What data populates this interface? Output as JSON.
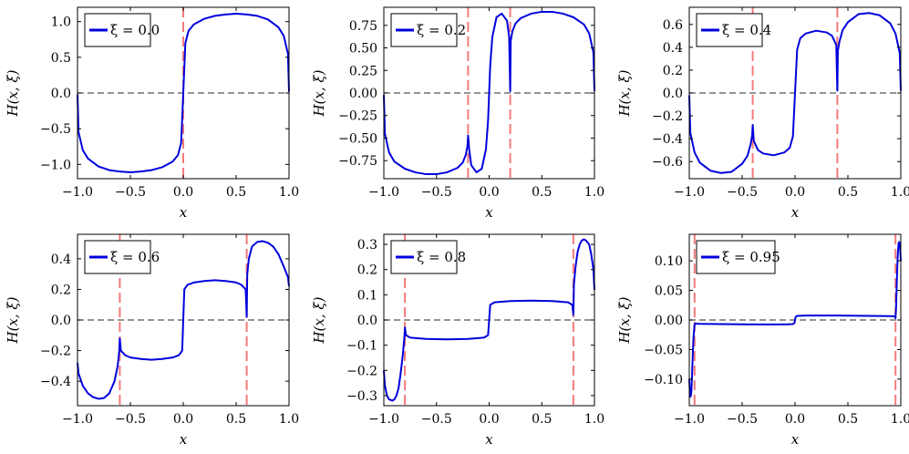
{
  "colors": {
    "curve": "#0000dd",
    "marker": "#f47a7a",
    "zero": "#555555"
  },
  "chart_data": [
    {
      "type": "line",
      "panel": "top-left",
      "legend": "ξ = 0.0",
      "xi": 0.0,
      "xlim": [
        -1,
        1
      ],
      "ylim": [
        -1.2,
        1.2
      ],
      "xticks": [
        -1,
        -0.5,
        0,
        0.5,
        1
      ],
      "xtick_labels": [
        "−1.0",
        "−0.5",
        "0.0",
        "0.5",
        "1.0"
      ],
      "yticks": [
        -1,
        -0.5,
        0,
        0.5,
        1
      ],
      "ytick_labels": [
        "−1.0",
        "−0.5",
        "0.0",
        "0.5",
        "1.0"
      ],
      "xlabel": "x",
      "ylabel": "H(x, ξ)",
      "vlines": [
        0
      ],
      "x": [
        -1.0,
        -0.99,
        -0.95,
        -0.9,
        -0.8,
        -0.7,
        -0.6,
        -0.5,
        -0.4,
        -0.3,
        -0.2,
        -0.1,
        -0.05,
        -0.02,
        0.0,
        0.02,
        0.05,
        0.1,
        0.2,
        0.3,
        0.4,
        0.5,
        0.6,
        0.7,
        0.8,
        0.9,
        0.95,
        0.99,
        1.0
      ],
      "y": [
        -0.02,
        -0.55,
        -0.8,
        -0.92,
        -1.03,
        -1.08,
        -1.1,
        -1.11,
        -1.1,
        -1.08,
        -1.04,
        -0.96,
        -0.87,
        -0.7,
        0.0,
        0.7,
        0.87,
        0.96,
        1.04,
        1.08,
        1.1,
        1.11,
        1.1,
        1.08,
        1.03,
        0.92,
        0.8,
        0.55,
        0.02
      ]
    },
    {
      "type": "line",
      "panel": "top-center",
      "legend": "ξ = 0.2",
      "xi": 0.2,
      "xlim": [
        -1,
        1
      ],
      "ylim": [
        -0.95,
        0.95
      ],
      "xticks": [
        -1,
        -0.5,
        0,
        0.5,
        1
      ],
      "xtick_labels": [
        "−1.0",
        "−0.5",
        "0.0",
        "0.5",
        "1.0"
      ],
      "yticks": [
        -0.75,
        -0.5,
        -0.25,
        0,
        0.25,
        0.5,
        0.75
      ],
      "ytick_labels": [
        "−0.75",
        "−0.50",
        "−0.25",
        "0.00",
        "0.25",
        "0.50",
        "0.75"
      ],
      "xlabel": "x",
      "ylabel": "H(x, ξ)",
      "vlines": [
        -0.2,
        0.2
      ],
      "x": [
        -1.0,
        -0.99,
        -0.95,
        -0.9,
        -0.8,
        -0.7,
        -0.6,
        -0.5,
        -0.4,
        -0.3,
        -0.25,
        -0.22,
        -0.205,
        -0.2,
        -0.19,
        -0.17,
        -0.12,
        -0.07,
        -0.03,
        -0.01,
        0.0,
        0.01,
        0.03,
        0.07,
        0.12,
        0.17,
        0.19,
        0.2,
        0.205,
        0.22,
        0.25,
        0.3,
        0.4,
        0.5,
        0.6,
        0.7,
        0.8,
        0.9,
        0.95,
        0.99,
        1.0
      ],
      "y": [
        -0.02,
        -0.45,
        -0.66,
        -0.76,
        -0.84,
        -0.88,
        -0.9,
        -0.9,
        -0.88,
        -0.83,
        -0.77,
        -0.68,
        -0.58,
        -0.47,
        -0.62,
        -0.8,
        -0.88,
        -0.84,
        -0.62,
        -0.3,
        0.0,
        0.3,
        0.62,
        0.84,
        0.88,
        0.8,
        0.62,
        0.02,
        0.58,
        0.68,
        0.77,
        0.83,
        0.88,
        0.9,
        0.9,
        0.88,
        0.84,
        0.76,
        0.66,
        0.45,
        0.02
      ]
    },
    {
      "type": "line",
      "panel": "top-right",
      "legend": "ξ = 0.4",
      "xi": 0.4,
      "xlim": [
        -1,
        1
      ],
      "ylim": [
        -0.75,
        0.75
      ],
      "xticks": [
        -1,
        -0.5,
        0,
        0.5,
        1
      ],
      "xtick_labels": [
        "−1.0",
        "−0.5",
        "0.0",
        "0.5",
        "1.0"
      ],
      "yticks": [
        -0.6,
        -0.4,
        -0.2,
        0,
        0.2,
        0.4,
        0.6
      ],
      "ytick_labels": [
        "−0.6",
        "−0.4",
        "−0.2",
        "0.0",
        "0.2",
        "0.4",
        "0.6"
      ],
      "xlabel": "x",
      "ylabel": "H(x, ξ)",
      "vlines": [
        -0.4,
        0.4
      ],
      "x": [
        -1.0,
        -0.99,
        -0.95,
        -0.9,
        -0.8,
        -0.7,
        -0.6,
        -0.5,
        -0.45,
        -0.42,
        -0.405,
        -0.4,
        -0.39,
        -0.35,
        -0.3,
        -0.2,
        -0.1,
        -0.05,
        -0.02,
        0.0,
        0.02,
        0.05,
        0.1,
        0.2,
        0.3,
        0.35,
        0.39,
        0.4,
        0.405,
        0.42,
        0.45,
        0.5,
        0.6,
        0.7,
        0.8,
        0.9,
        0.95,
        0.99,
        1.0
      ],
      "y": [
        -0.02,
        -0.35,
        -0.52,
        -0.61,
        -0.68,
        -0.7,
        -0.69,
        -0.62,
        -0.55,
        -0.45,
        -0.37,
        -0.28,
        -0.42,
        -0.5,
        -0.53,
        -0.545,
        -0.52,
        -0.48,
        -0.38,
        0.0,
        0.38,
        0.48,
        0.52,
        0.545,
        0.53,
        0.5,
        0.42,
        0.02,
        0.37,
        0.45,
        0.55,
        0.62,
        0.69,
        0.7,
        0.68,
        0.61,
        0.52,
        0.35,
        0.02
      ]
    },
    {
      "type": "line",
      "panel": "bottom-left",
      "legend": "ξ = 0.6",
      "xi": 0.6,
      "xlim": [
        -1,
        1
      ],
      "ylim": [
        -0.56,
        0.56
      ],
      "xticks": [
        -1,
        -0.5,
        0,
        0.5,
        1
      ],
      "xtick_labels": [
        "−1.0",
        "−0.5",
        "0.0",
        "0.5",
        "1.0"
      ],
      "yticks": [
        -0.4,
        -0.2,
        0,
        0.2,
        0.4
      ],
      "ytick_labels": [
        "−0.4",
        "−0.2",
        "0.0",
        "0.2",
        "0.4"
      ],
      "xlabel": "x",
      "ylabel": "H(x, ξ)",
      "vlines": [
        -0.6,
        0.6
      ],
      "x": [
        -1.0,
        -0.99,
        -0.95,
        -0.9,
        -0.85,
        -0.8,
        -0.75,
        -0.7,
        -0.65,
        -0.62,
        -0.605,
        -0.6,
        -0.59,
        -0.55,
        -0.5,
        -0.4,
        -0.3,
        -0.2,
        -0.1,
        -0.04,
        -0.01,
        0.0,
        0.01,
        0.04,
        0.1,
        0.2,
        0.3,
        0.4,
        0.5,
        0.55,
        0.59,
        0.6,
        0.605,
        0.62,
        0.65,
        0.7,
        0.75,
        0.8,
        0.85,
        0.9,
        0.95,
        0.99,
        1.0
      ],
      "y": [
        -0.28,
        -0.35,
        -0.43,
        -0.48,
        -0.505,
        -0.515,
        -0.51,
        -0.48,
        -0.4,
        -0.3,
        -0.2,
        -0.12,
        -0.2,
        -0.23,
        -0.245,
        -0.255,
        -0.26,
        -0.255,
        -0.245,
        -0.23,
        -0.2,
        0.0,
        0.2,
        0.23,
        0.245,
        0.255,
        0.26,
        0.255,
        0.245,
        0.23,
        0.2,
        0.02,
        0.3,
        0.4,
        0.48,
        0.51,
        0.515,
        0.505,
        0.48,
        0.43,
        0.35,
        0.28,
        0.22
      ]
    },
    {
      "type": "line",
      "panel": "bottom-center",
      "legend": "ξ = 0.8",
      "xi": 0.8,
      "xlim": [
        -1,
        1
      ],
      "ylim": [
        -0.34,
        0.34
      ],
      "xticks": [
        -1,
        -0.5,
        0,
        0.5,
        1
      ],
      "xtick_labels": [
        "−1.0",
        "−0.5",
        "0.0",
        "0.5",
        "1.0"
      ],
      "yticks": [
        -0.3,
        -0.2,
        -0.1,
        0,
        0.1,
        0.2,
        0.3
      ],
      "ytick_labels": [
        "−0.3",
        "−0.2",
        "−0.1",
        "0.0",
        "0.1",
        "0.2",
        "0.3"
      ],
      "xlabel": "x",
      "ylabel": "H(x, ξ)",
      "vlines": [
        -0.8,
        0.8
      ],
      "x": [
        -1.0,
        -0.99,
        -0.97,
        -0.95,
        -0.92,
        -0.9,
        -0.88,
        -0.86,
        -0.84,
        -0.82,
        -0.805,
        -0.8,
        -0.79,
        -0.75,
        -0.6,
        -0.4,
        -0.2,
        -0.05,
        -0.01,
        0.0,
        0.01,
        0.05,
        0.2,
        0.4,
        0.6,
        0.75,
        0.79,
        0.8,
        0.805,
        0.82,
        0.84,
        0.86,
        0.88,
        0.9,
        0.92,
        0.95,
        0.97,
        0.99,
        1.0
      ],
      "y": [
        -0.2,
        -0.26,
        -0.3,
        -0.315,
        -0.32,
        -0.315,
        -0.3,
        -0.27,
        -0.21,
        -0.14,
        -0.07,
        -0.03,
        -0.06,
        -0.07,
        -0.075,
        -0.077,
        -0.075,
        -0.07,
        -0.06,
        0.0,
        0.06,
        0.07,
        0.075,
        0.077,
        0.075,
        0.07,
        0.06,
        0.02,
        0.14,
        0.21,
        0.27,
        0.3,
        0.315,
        0.32,
        0.315,
        0.3,
        0.26,
        0.2,
        0.12
      ]
    },
    {
      "type": "line",
      "panel": "bottom-right",
      "legend": "ξ = 0.95",
      "xi": 0.95,
      "xlim": [
        -1,
        1
      ],
      "ylim": [
        -0.145,
        0.145
      ],
      "xticks": [
        -1,
        -0.5,
        0,
        0.5,
        1
      ],
      "xtick_labels": [
        "−1.0",
        "−0.5",
        "0.0",
        "0.5",
        "1.0"
      ],
      "yticks": [
        -0.1,
        -0.05,
        0,
        0.05,
        0.1
      ],
      "ytick_labels": [
        "−0.10",
        "−0.05",
        "0.00",
        "0.05",
        "0.10"
      ],
      "xlabel": "x",
      "ylabel": "H(x, ξ)",
      "vlines": [
        -0.95,
        0.95
      ],
      "x": [
        -1.0,
        -0.995,
        -0.99,
        -0.985,
        -0.98,
        -0.975,
        -0.97,
        -0.965,
        -0.96,
        -0.955,
        -0.95,
        -0.945,
        -0.9,
        -0.7,
        -0.4,
        -0.1,
        -0.02,
        -0.005,
        0.0,
        0.005,
        0.02,
        0.1,
        0.4,
        0.7,
        0.9,
        0.945,
        0.95,
        0.955,
        0.96,
        0.965,
        0.97,
        0.975,
        0.98,
        0.985,
        0.99,
        0.995,
        1.0
      ],
      "y": [
        -0.1,
        -0.12,
        -0.13,
        -0.128,
        -0.12,
        -0.1,
        -0.075,
        -0.05,
        -0.03,
        -0.018,
        -0.008,
        -0.006,
        -0.0065,
        -0.007,
        -0.0075,
        -0.0075,
        -0.007,
        -0.005,
        0.0,
        0.005,
        0.007,
        0.0075,
        0.0075,
        0.007,
        0.0065,
        0.006,
        0.003,
        0.018,
        0.05,
        0.08,
        0.105,
        0.12,
        0.13,
        0.132,
        0.128,
        0.118,
        0.1
      ]
    }
  ]
}
